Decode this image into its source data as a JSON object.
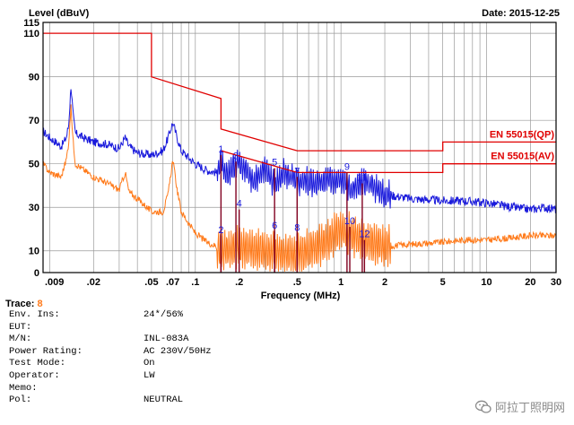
{
  "header": {
    "level_label": "Level (dBuV)",
    "date": "Date: 2015-12-25"
  },
  "chart_data": {
    "type": "line",
    "xscale": "log",
    "xlim": [
      0.009,
      30
    ],
    "ylim": [
      0,
      115
    ],
    "xlabel": "Frequency (MHz)",
    "ylabel": "Level (dBuV)",
    "grid": true,
    "y_ticks": [
      0,
      10,
      30,
      50,
      70,
      90,
      110,
      115
    ],
    "x_ticks": [
      {
        "value": 0.009,
        "label": ".009"
      },
      {
        "value": 0.02,
        "label": ".02"
      },
      {
        "value": 0.05,
        "label": ".05"
      },
      {
        "value": 0.07,
        "label": ".07"
      },
      {
        "value": 0.1,
        "label": ".1"
      },
      {
        "value": 0.2,
        "label": ".2"
      },
      {
        "value": 0.5,
        "label": ".5"
      },
      {
        "value": 1,
        "label": "1"
      },
      {
        "value": 2,
        "label": "2"
      },
      {
        "value": 5,
        "label": "5"
      },
      {
        "value": 10,
        "label": "10"
      },
      {
        "value": 20,
        "label": "20"
      },
      {
        "value": 30,
        "label": "30"
      }
    ],
    "limit_lines": [
      {
        "name": "EN 55015(QP)",
        "color": "#e00000",
        "points": [
          [
            0.009,
            110
          ],
          [
            0.05,
            110
          ],
          [
            0.05,
            90
          ],
          [
            0.15,
            80
          ],
          [
            0.15,
            66
          ],
          [
            0.5,
            56
          ],
          [
            5,
            56
          ],
          [
            5,
            60
          ],
          [
            30,
            60
          ]
        ]
      },
      {
        "name": "EN 55015(AV)",
        "color": "#e00000",
        "points": [
          [
            0.15,
            56
          ],
          [
            0.5,
            46
          ],
          [
            5,
            46
          ],
          [
            5,
            50
          ],
          [
            30,
            50
          ]
        ]
      }
    ],
    "series": [
      {
        "color": "#1a1adc",
        "points": [
          [
            0.009,
            65
          ],
          [
            0.01,
            62
          ],
          [
            0.011,
            60
          ],
          [
            0.012,
            58
          ],
          [
            0.013,
            62
          ],
          [
            0.0135,
            68
          ],
          [
            0.014,
            86
          ],
          [
            0.0145,
            72
          ],
          [
            0.015,
            64
          ],
          [
            0.017,
            62
          ],
          [
            0.02,
            60
          ],
          [
            0.025,
            59
          ],
          [
            0.03,
            57
          ],
          [
            0.033,
            62
          ],
          [
            0.035,
            58
          ],
          [
            0.04,
            55
          ],
          [
            0.05,
            54
          ],
          [
            0.06,
            56
          ],
          [
            0.065,
            62
          ],
          [
            0.07,
            69
          ],
          [
            0.075,
            62
          ],
          [
            0.08,
            56
          ],
          [
            0.1,
            50
          ],
          [
            0.12,
            47
          ],
          [
            0.14,
            46
          ],
          [
            0.15,
            52
          ],
          [
            0.16,
            44
          ],
          [
            0.2,
            52
          ],
          [
            0.25,
            42
          ],
          [
            0.3,
            48
          ],
          [
            0.35,
            40
          ],
          [
            0.4,
            46
          ],
          [
            0.5,
            42
          ],
          [
            0.7,
            41
          ],
          [
            1,
            44
          ],
          [
            1.2,
            38
          ],
          [
            1.5,
            42
          ],
          [
            2,
            36
          ],
          [
            3,
            34
          ],
          [
            5,
            33
          ],
          [
            7,
            33
          ],
          [
            10,
            32
          ],
          [
            15,
            30
          ],
          [
            20,
            29
          ],
          [
            25,
            30
          ],
          [
            30,
            29
          ]
        ]
      },
      {
        "color": "#ff7a1a",
        "points": [
          [
            0.009,
            50
          ],
          [
            0.01,
            46
          ],
          [
            0.012,
            44
          ],
          [
            0.013,
            52
          ],
          [
            0.0135,
            60
          ],
          [
            0.014,
            76
          ],
          [
            0.0145,
            60
          ],
          [
            0.015,
            50
          ],
          [
            0.02,
            44
          ],
          [
            0.025,
            41
          ],
          [
            0.03,
            38
          ],
          [
            0.033,
            46
          ],
          [
            0.035,
            37
          ],
          [
            0.04,
            34
          ],
          [
            0.05,
            28
          ],
          [
            0.06,
            28
          ],
          [
            0.065,
            36
          ],
          [
            0.07,
            52
          ],
          [
            0.075,
            38
          ],
          [
            0.08,
            28
          ],
          [
            0.1,
            18
          ],
          [
            0.12,
            14
          ],
          [
            0.14,
            12
          ],
          [
            0.15,
            10
          ],
          [
            0.2,
            12
          ],
          [
            0.3,
            10
          ],
          [
            0.5,
            8
          ],
          [
            0.8,
            14
          ],
          [
            1,
            20
          ],
          [
            1.5,
            14
          ],
          [
            2,
            12
          ],
          [
            3,
            13
          ],
          [
            5,
            14
          ],
          [
            7,
            15
          ],
          [
            10,
            15
          ],
          [
            15,
            16
          ],
          [
            20,
            17
          ],
          [
            30,
            17
          ]
        ]
      }
    ],
    "markers": [
      {
        "label": "1",
        "x": 0.15,
        "y": 54
      },
      {
        "label": "2",
        "x": 0.15,
        "y": 17
      },
      {
        "label": "3",
        "x": 0.19,
        "y": 51
      },
      {
        "label": "4",
        "x": 0.2,
        "y": 29
      },
      {
        "label": "5",
        "x": 0.35,
        "y": 48
      },
      {
        "label": "6",
        "x": 0.35,
        "y": 19
      },
      {
        "label": "7",
        "x": 0.5,
        "y": 44
      },
      {
        "label": "8",
        "x": 0.5,
        "y": 18
      },
      {
        "label": "9",
        "x": 1.1,
        "y": 46
      },
      {
        "label": "10",
        "x": 1.15,
        "y": 21
      },
      {
        "label": "11",
        "x": 1.4,
        "y": 41
      },
      {
        "label": "12",
        "x": 1.45,
        "y": 15
      }
    ]
  },
  "info": {
    "trace_label": "Trace:",
    "trace_value": "8",
    "rows": [
      {
        "key": "Env. Ins:",
        "value": "24*/56%"
      },
      {
        "key": "EUT:",
        "value": ""
      },
      {
        "key": "M/N:",
        "value": "INL-083A"
      },
      {
        "key": "Power Rating:",
        "value": "AC 230V/50Hz"
      },
      {
        "key": "Test Mode:",
        "value": "On"
      },
      {
        "key": "Operator:",
        "value": "LW"
      },
      {
        "key": "Memo:",
        "value": ""
      },
      {
        "key": "Pol:",
        "value": "NEUTRAL"
      }
    ]
  },
  "watermark": {
    "icon": "wechat-icon",
    "text": "阿拉丁照明网"
  }
}
